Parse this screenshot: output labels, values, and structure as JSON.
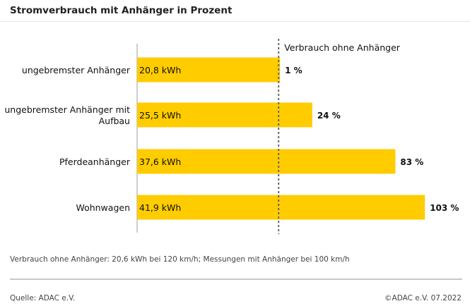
{
  "header": {
    "title": "Stromverbrauch mit Anhänger in Prozent"
  },
  "chart_data": {
    "type": "bar",
    "orientation": "horizontal",
    "title": "Stromverbrauch mit Anhänger in Prozent",
    "reference_label": "Verbrauch ohne Anhänger",
    "reference_value_kwh": 20.6,
    "categories": [
      [
        "ungebremster Anhänger"
      ],
      [
        "ungebremster Anhänger mit",
        "Aufbau"
      ],
      [
        "Pferdeanhänger"
      ],
      [
        "Wohnwagen"
      ]
    ],
    "values_kwh": [
      20.8,
      25.5,
      37.6,
      41.9
    ],
    "value_labels": [
      "20,8 kWh",
      "25,5 kWh",
      "37,6 kWh",
      "41,9 kWh"
    ],
    "percent_labels": [
      "1 %",
      "24 %",
      "83 %",
      "103 %"
    ],
    "xlim_kwh": [
      0,
      42.6
    ],
    "bar_color": "#ffcc00"
  },
  "footer": {
    "note": "Verbrauch ohne Anhänger: 20,6 kWh bei 120 km/h; Messungen mit Anhänger bei 100 km/h",
    "source": "Quelle: ADAC e.V.",
    "copyright": "©ADAC e.V.  07.2022"
  }
}
